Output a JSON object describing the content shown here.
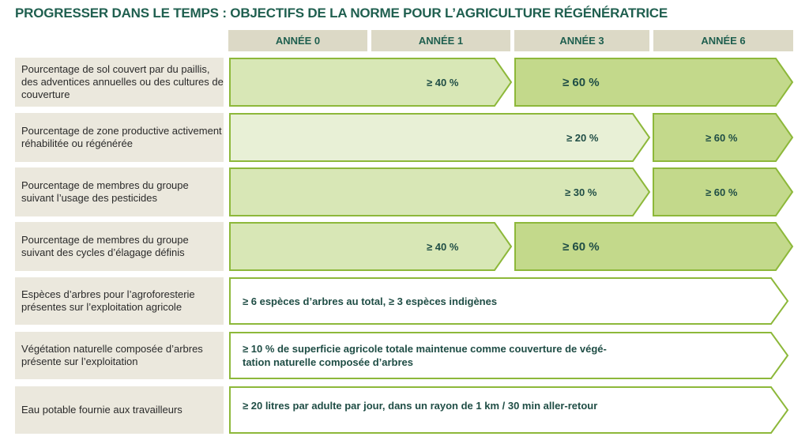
{
  "title": "PROGRESSER DANS LE TEMPS : OBJECTIFS DE LA NORME POUR L’AGRICULTURE RÉGÉNÉRATRICE",
  "headers": [
    "ANNÉE 0",
    "ANNÉE 1",
    "ANNÉE 3",
    "ANNÉE 6"
  ],
  "colors": {
    "border": "#8db83a",
    "light": "#e8f0d6",
    "medium": "#d8e7b6",
    "dark": "#c3d98b",
    "white": "#ffffff",
    "text": "#1f4d45",
    "label_bg": "#ebe8dd",
    "header_bg": "#dcd9c6"
  },
  "rows": [
    {
      "label": "Pourcentage de sol couvert par du paillis, des adventices annuelles ou des cultures de couverture",
      "segments": [
        {
          "from": "ANNÉE 0",
          "to": "ANNÉE 1",
          "text": "≥ 40 %"
        },
        {
          "from": "ANNÉE 3",
          "to": "ANNÉE 6",
          "text": "≥ 60 %"
        }
      ]
    },
    {
      "label": "Pourcentage de zone productive activement réhabilitée ou régénérée",
      "segments": [
        {
          "from": "ANNÉE 0",
          "to": "ANNÉE 3",
          "text": "≥ 20 %"
        },
        {
          "from": "ANNÉE 6",
          "to": "ANNÉE 6",
          "text": "≥ 60 %"
        }
      ]
    },
    {
      "label": "Pourcentage de membres du groupe suivant l’usage des pesticides",
      "segments": [
        {
          "from": "ANNÉE 0",
          "to": "ANNÉE 3",
          "text": "≥ 30 %"
        },
        {
          "from": "ANNÉE 6",
          "to": "ANNÉE 6",
          "text": "≥ 60 %"
        }
      ]
    },
    {
      "label": "Pourcentage de membres du groupe suivant des cycles d’élagage définis",
      "segments": [
        {
          "from": "ANNÉE 0",
          "to": "ANNÉE 1",
          "text": "≥ 40 %"
        },
        {
          "from": "ANNÉE 3",
          "to": "ANNÉE 6",
          "text": "≥ 60 %"
        }
      ]
    },
    {
      "label": "Espèces d’arbres pour l’agroforesterie présentes sur l’exploitation agricole",
      "segments": [
        {
          "text": "≥ 6 espèces d’arbres au total, ≥ 3 espèces indigènes"
        }
      ]
    },
    {
      "label": "Végétation naturelle composée d’arbres présente sur l’exploitation",
      "segments": [
        {
          "text": "≥ 10 % de superficie agricole totale maintenue comme couverture de végé-\ntation naturelle composée d’arbres"
        }
      ]
    },
    {
      "label": "Eau potable fournie aux travailleurs",
      "segments": [
        {
          "text": "≥ 20 litres par adulte par jour, dans un rayon de 1 km / 30 min aller-retour"
        }
      ]
    }
  ]
}
